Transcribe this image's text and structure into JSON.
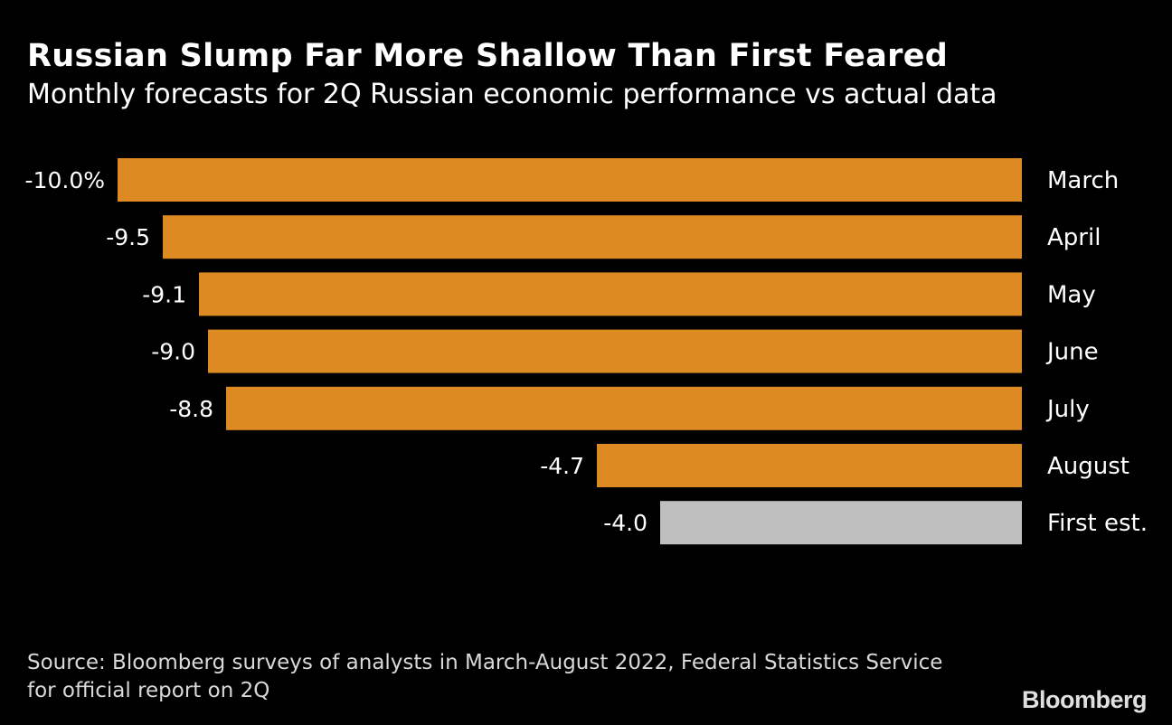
{
  "title": "Russian Slump Far More Shallow Than First Feared",
  "subtitle": "Monthly forecasts for 2Q Russian economic performance vs actual data",
  "source": "Source: Bloomberg surveys of analysts in March-August 2022, Federal Statistics Service for official report on 2Q",
  "logo": "Bloomberg",
  "chart_data": {
    "type": "bar",
    "orientation": "horizontal",
    "categories": [
      "March",
      "April",
      "May",
      "June",
      "July",
      "August",
      "First est."
    ],
    "values": [
      -10.0,
      -9.5,
      -9.1,
      -9.0,
      -8.8,
      -4.7,
      -4.0
    ],
    "data_labels": [
      "-10.0%",
      "-9.5",
      "-9.1",
      "-9.0",
      "-8.8",
      "-4.7",
      "-4.0"
    ],
    "xlim": [
      -10,
      0
    ],
    "grid": false,
    "axes_visible": false,
    "colors": [
      "#DD8A22",
      "#DD8A22",
      "#DD8A22",
      "#DD8A22",
      "#DD8A22",
      "#DD8A22",
      "#BFBFBF"
    ]
  }
}
